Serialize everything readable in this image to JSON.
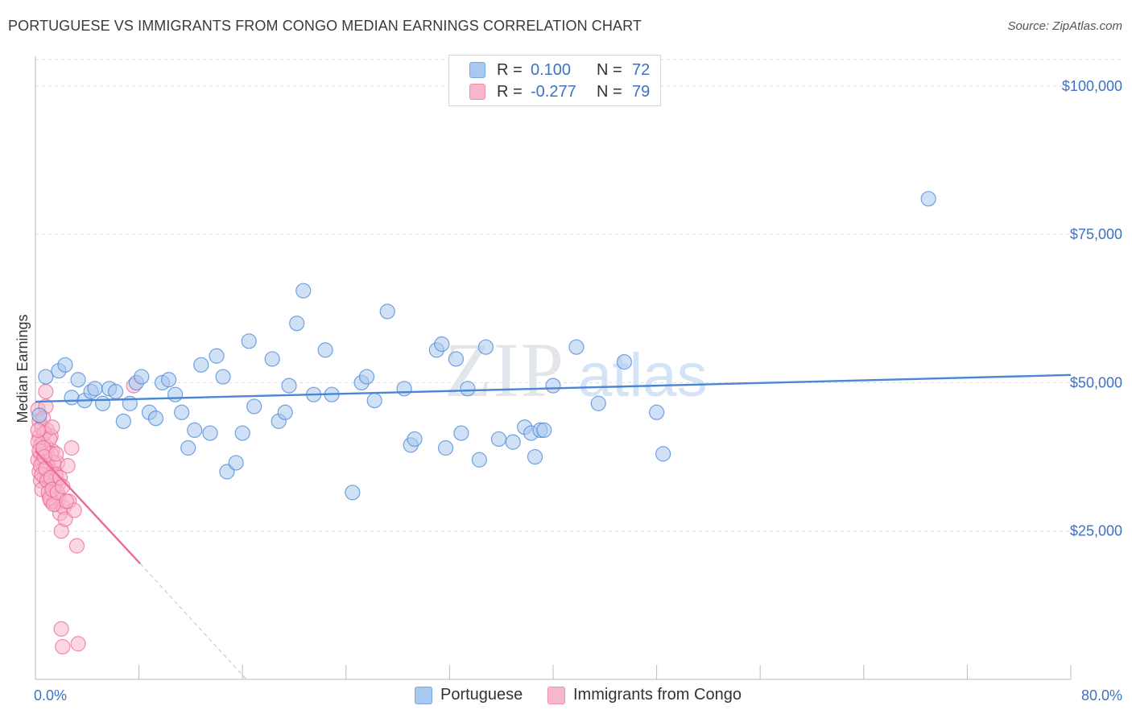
{
  "title": "PORTUGUESE VS IMMIGRANTS FROM CONGO MEDIAN EARNINGS CORRELATION CHART",
  "source": "Source: ZipAtlas.com",
  "watermark": {
    "zip": "ZIP",
    "atlas": "atlas"
  },
  "legend_top": [
    {
      "r_label": "R =",
      "r_value": "0.100",
      "n_label": "N =",
      "n_value": "72",
      "color": "#a9c8ef"
    },
    {
      "r_label": "R =",
      "r_value": "-0.277",
      "n_label": "N =",
      "n_value": "79",
      "color": "#f7b7cb"
    }
  ],
  "legend_bottom": [
    {
      "label": "Portuguese",
      "color": "#a9c8ef"
    },
    {
      "label": "Immigrants from Congo",
      "color": "#f7b7cb"
    }
  ],
  "chart_data": {
    "type": "scatter",
    "ylabel": "Median Earnings",
    "xlim": [
      0,
      80
    ],
    "ylim": [
      0,
      105000
    ],
    "x_tick_labels": {
      "left": "0.0%",
      "right": "80.0%"
    },
    "y_ticks": [
      {
        "value": 25000,
        "label": "$25,000"
      },
      {
        "value": 50000,
        "label": "$50,000"
      },
      {
        "value": 75000,
        "label": "$75,000"
      },
      {
        "value": 100000,
        "label": "$100,000"
      }
    ],
    "grid": true,
    "series": [
      {
        "name": "Portuguese",
        "color": "#4a86d6",
        "fill": "#a9c8ef",
        "trend": {
          "x": [
            0,
            80
          ],
          "y": [
            46800,
            51300
          ],
          "style": "solid"
        },
        "points": [
          [
            0.8,
            51000
          ],
          [
            1.8,
            52000
          ],
          [
            2.3,
            53000
          ],
          [
            2.8,
            47500
          ],
          [
            3.3,
            50500
          ],
          [
            3.8,
            47000
          ],
          [
            4.3,
            48500
          ],
          [
            4.6,
            49000
          ],
          [
            5.2,
            46500
          ],
          [
            5.7,
            49000
          ],
          [
            6.2,
            48500
          ],
          [
            6.8,
            43500
          ],
          [
            7.3,
            46500
          ],
          [
            7.8,
            50000
          ],
          [
            8.2,
            51000
          ],
          [
            8.8,
            45000
          ],
          [
            9.3,
            44000
          ],
          [
            9.8,
            50000
          ],
          [
            10.3,
            50500
          ],
          [
            10.8,
            48000
          ],
          [
            11.3,
            45000
          ],
          [
            11.8,
            39000
          ],
          [
            12.3,
            42000
          ],
          [
            12.8,
            53000
          ],
          [
            13.5,
            41500
          ],
          [
            14.0,
            54500
          ],
          [
            14.5,
            51000
          ],
          [
            14.8,
            35000
          ],
          [
            15.5,
            36500
          ],
          [
            16.0,
            41500
          ],
          [
            16.5,
            57000
          ],
          [
            16.9,
            46000
          ],
          [
            18.3,
            54000
          ],
          [
            18.8,
            43500
          ],
          [
            19.3,
            45000
          ],
          [
            19.6,
            49500
          ],
          [
            20.2,
            60000
          ],
          [
            20.7,
            65500
          ],
          [
            21.5,
            48000
          ],
          [
            22.4,
            55500
          ],
          [
            22.9,
            48000
          ],
          [
            24.5,
            31500
          ],
          [
            25.2,
            50000
          ],
          [
            25.6,
            51000
          ],
          [
            26.2,
            47000
          ],
          [
            27.2,
            62000
          ],
          [
            28.5,
            49000
          ],
          [
            29.0,
            39500
          ],
          [
            29.3,
            40500
          ],
          [
            31.0,
            55500
          ],
          [
            31.4,
            56500
          ],
          [
            31.7,
            39000
          ],
          [
            32.5,
            54000
          ],
          [
            32.9,
            41500
          ],
          [
            33.4,
            49000
          ],
          [
            34.3,
            37000
          ],
          [
            34.8,
            56000
          ],
          [
            35.8,
            40500
          ],
          [
            36.9,
            40000
          ],
          [
            37.8,
            42500
          ],
          [
            38.3,
            41500
          ],
          [
            38.6,
            37500
          ],
          [
            39.0,
            42000
          ],
          [
            39.3,
            42000
          ],
          [
            40.0,
            49500
          ],
          [
            41.8,
            56000
          ],
          [
            43.5,
            46500
          ],
          [
            45.5,
            53500
          ],
          [
            48.0,
            45000
          ],
          [
            48.5,
            38000
          ],
          [
            69.0,
            81000
          ],
          [
            0.3,
            44500
          ]
        ]
      },
      {
        "name": "Immigrants from Congo",
        "color": "#ec6a93",
        "fill": "#f7b7cb",
        "trend": {
          "x": [
            0,
            8.1
          ],
          "y": [
            38500,
            19500
          ],
          "style": "solid",
          "dashed_x": [
            8.1,
            16.3
          ],
          "dashed_y": [
            19500,
            0
          ]
        },
        "points": [
          [
            0.2,
            45500
          ],
          [
            0.3,
            43500
          ],
          [
            0.3,
            41000
          ],
          [
            0.4,
            39500
          ],
          [
            0.4,
            38000
          ],
          [
            0.5,
            36500
          ],
          [
            0.5,
            42500
          ],
          [
            0.6,
            40000
          ],
          [
            0.6,
            37000
          ],
          [
            0.7,
            35500
          ],
          [
            0.7,
            34000
          ],
          [
            0.8,
            48500
          ],
          [
            0.8,
            46000
          ],
          [
            0.9,
            42000
          ],
          [
            0.9,
            39000
          ],
          [
            1.0,
            37500
          ],
          [
            1.0,
            36000
          ],
          [
            1.1,
            33000
          ],
          [
            1.1,
            31000
          ],
          [
            1.2,
            30000
          ],
          [
            1.2,
            41000
          ],
          [
            1.3,
            38500
          ],
          [
            1.3,
            35000
          ],
          [
            1.4,
            33500
          ],
          [
            1.4,
            32500
          ],
          [
            1.5,
            34500
          ],
          [
            1.5,
            30000
          ],
          [
            1.6,
            29500
          ],
          [
            1.7,
            31000
          ],
          [
            1.7,
            36500
          ],
          [
            1.8,
            33000
          ],
          [
            1.8,
            30500
          ],
          [
            1.9,
            28000
          ],
          [
            2.0,
            25000
          ],
          [
            2.0,
            8500
          ],
          [
            2.1,
            5500
          ],
          [
            2.2,
            29000
          ],
          [
            2.3,
            27000
          ],
          [
            2.5,
            36000
          ],
          [
            2.6,
            30000
          ],
          [
            2.8,
            39000
          ],
          [
            3.0,
            28500
          ],
          [
            3.2,
            22500
          ],
          [
            3.3,
            6000
          ],
          [
            7.6,
            49500
          ],
          [
            0.2,
            37000
          ],
          [
            0.3,
            35000
          ],
          [
            0.4,
            33500
          ],
          [
            0.5,
            32000
          ],
          [
            0.6,
            44000
          ],
          [
            0.7,
            41500
          ],
          [
            0.8,
            38500
          ],
          [
            0.9,
            36000
          ],
          [
            1.0,
            34000
          ],
          [
            1.1,
            40500
          ],
          [
            1.2,
            38000
          ],
          [
            1.3,
            42500
          ],
          [
            1.4,
            36500
          ],
          [
            1.5,
            33000
          ],
          [
            1.6,
            34500
          ],
          [
            0.2,
            40000
          ],
          [
            0.3,
            38500
          ],
          [
            0.4,
            36000
          ],
          [
            0.5,
            34500
          ],
          [
            0.6,
            39000
          ],
          [
            0.7,
            37500
          ],
          [
            0.8,
            35500
          ],
          [
            0.9,
            33500
          ],
          [
            1.0,
            31500
          ],
          [
            1.1,
            30500
          ],
          [
            1.2,
            34000
          ],
          [
            1.3,
            32000
          ],
          [
            1.4,
            29500
          ],
          [
            1.6,
            38000
          ],
          [
            1.7,
            31500
          ],
          [
            1.9,
            34000
          ],
          [
            2.1,
            32500
          ],
          [
            2.4,
            30000
          ],
          [
            0.2,
            42000
          ]
        ]
      }
    ]
  }
}
